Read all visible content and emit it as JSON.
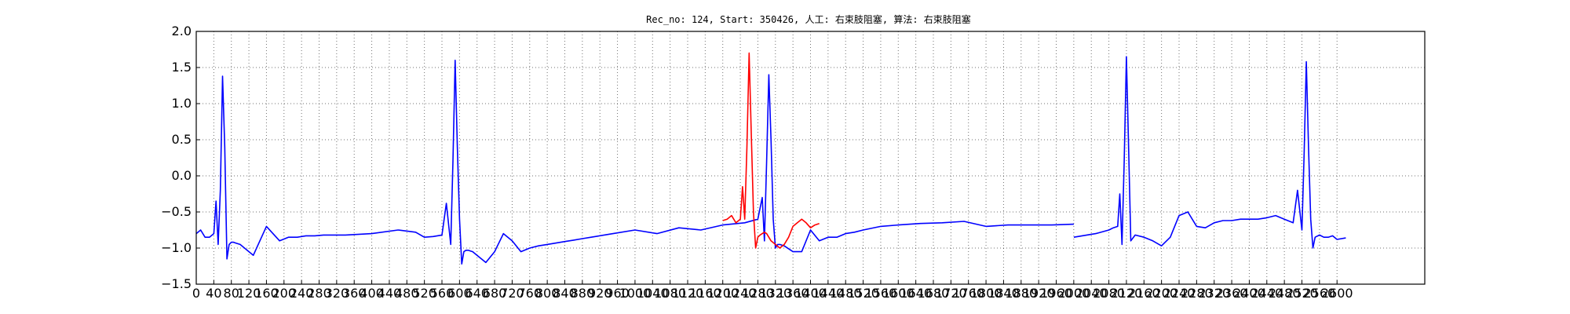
{
  "chart_data": {
    "type": "line",
    "title": "Rec_no: 124, Start: 350426, 人工: 右束肢阻塞, 算法: 右束肢阻塞",
    "xlim": [
      0,
      2800
    ],
    "ylim": [
      -1.5,
      2.0
    ],
    "x_ticks": [
      0,
      40,
      80,
      120,
      160,
      200,
      240,
      280,
      320,
      360,
      400,
      440,
      480,
      520,
      560,
      600,
      640,
      680,
      720,
      760,
      800,
      840,
      880,
      920,
      960,
      1000,
      1040,
      1080,
      1120,
      1160,
      1200,
      1240,
      1280,
      1320,
      1360,
      1400,
      1440,
      1480,
      1520,
      1560,
      1600,
      1640,
      1680,
      1720,
      1760,
      1800,
      1840,
      1880,
      1920,
      1960,
      2000,
      2040,
      2080,
      2120,
      2160,
      2200,
      2240,
      2280,
      2320,
      2360,
      2400,
      2440,
      2480,
      2520,
      2560,
      2600
    ],
    "y_ticks": [
      2.0,
      1.5,
      1.0,
      0.5,
      0.0,
      -0.5,
      -1.0,
      -1.5
    ],
    "y_tick_labels": [
      "2.0",
      "1.5",
      "1.0",
      "0.5",
      "0.0",
      "−0.5",
      "−1.0",
      "−1.5"
    ],
    "grid": true,
    "series": [
      {
        "color": "#0000ff",
        "x": [
          0,
          10,
          20,
          30,
          40,
          45,
          50,
          55,
          60,
          65,
          70,
          75,
          80,
          85,
          90,
          95,
          100,
          110,
          130,
          160,
          190,
          210,
          230,
          250,
          270,
          290,
          310,
          340,
          400,
          460,
          500,
          520,
          540,
          560,
          570,
          580,
          585,
          590,
          595,
          600,
          605,
          610,
          615,
          620,
          625,
          630,
          640,
          660,
          680,
          700,
          720,
          740,
          760,
          780,
          800,
          820,
          840,
          860,
          880,
          900,
          950,
          1000,
          1050,
          1100,
          1150,
          1200,
          1250,
          1280,
          1290,
          1295,
          1300,
          1305,
          1310,
          1315,
          1320,
          1325,
          1330,
          1340,
          1360,
          1380,
          1400,
          1420,
          1440,
          1460,
          1480,
          1500,
          1520,
          1560,
          1600,
          1650,
          1700,
          1750,
          1800,
          1850,
          1900,
          1950,
          2000
        ],
        "y": [
          -0.8,
          -0.75,
          -0.85,
          -0.85,
          -0.8,
          -0.35,
          -0.95,
          -0.2,
          1.38,
          0.4,
          -1.15,
          -0.95,
          -0.92,
          -0.92,
          -0.93,
          -0.94,
          -0.95,
          -1.0,
          -1.1,
          -0.7,
          -0.9,
          -0.85,
          -0.85,
          -0.83,
          -0.83,
          -0.82,
          -0.82,
          -0.82,
          -0.8,
          -0.75,
          -0.78,
          -0.85,
          -0.84,
          -0.82,
          -0.38,
          -0.95,
          0.2,
          1.6,
          0.4,
          -0.6,
          -1.22,
          -1.05,
          -1.03,
          -1.03,
          -1.04,
          -1.05,
          -1.1,
          -1.2,
          -1.05,
          -0.8,
          -0.9,
          -1.05,
          -1.0,
          -0.97,
          -0.95,
          -0.93,
          -0.91,
          -0.89,
          -0.87,
          -0.85,
          -0.8,
          -0.75,
          -0.8,
          -0.72,
          -0.75,
          -0.68,
          -0.65,
          -0.6,
          -0.3,
          -0.9,
          0.2,
          1.4,
          0.5,
          -0.6,
          -1.0,
          -0.95,
          -0.95,
          -0.97,
          -1.05,
          -1.05,
          -0.75,
          -0.9,
          -0.85,
          -0.85,
          -0.8,
          -0.78,
          -0.75,
          -0.7,
          -0.68,
          -0.66,
          -0.65,
          -0.63,
          -0.7,
          -0.68,
          -0.68,
          -0.68,
          -0.67
        ]
      }
    ]
  },
  "red_segment": {
    "color": "#ff0000",
    "x": [
      1200,
      1210,
      1220,
      1230,
      1240,
      1245,
      1250,
      1255,
      1260,
      1265,
      1270,
      1275,
      1280,
      1285,
      1290,
      1295,
      1300,
      1305,
      1310,
      1320,
      1330,
      1340,
      1350,
      1360,
      1370,
      1380,
      1390,
      1400,
      1410,
      1420
    ],
    "y": [
      -0.62,
      -0.6,
      -0.55,
      -0.65,
      -0.6,
      -0.15,
      -0.6,
      0.4,
      1.7,
      0.6,
      -0.5,
      -1.0,
      -0.85,
      -0.82,
      -0.8,
      -0.78,
      -0.8,
      -0.85,
      -0.9,
      -0.95,
      -1.0,
      -0.95,
      -0.85,
      -0.7,
      -0.65,
      -0.6,
      -0.65,
      -0.72,
      -0.68,
      -0.66
    ]
  },
  "blue_tail": {
    "color": "#0000ff",
    "x": [
      2000,
      2050,
      2080,
      2090,
      2100,
      2105,
      2110,
      2115,
      2120,
      2125,
      2130,
      2140,
      2160,
      2180,
      2200,
      2220,
      2240,
      2260,
      2280,
      2300,
      2320,
      2340,
      2360,
      2380,
      2400,
      2420,
      2440,
      2460,
      2480,
      2500,
      2510,
      2520,
      2525,
      2530,
      2535,
      2540,
      2545,
      2550,
      2560,
      2570,
      2580,
      2590,
      2600,
      2620
    ],
    "y": [
      -0.85,
      -0.8,
      -0.75,
      -0.72,
      -0.7,
      -0.25,
      -0.95,
      0.2,
      1.65,
      0.4,
      -0.9,
      -0.82,
      -0.85,
      -0.9,
      -0.97,
      -0.85,
      -0.55,
      -0.5,
      -0.7,
      -0.72,
      -0.65,
      -0.62,
      -0.62,
      -0.6,
      -0.6,
      -0.6,
      -0.58,
      -0.55,
      -0.6,
      -0.65,
      -0.2,
      -0.75,
      0.3,
      1.58,
      0.4,
      -0.6,
      -1.0,
      -0.85,
      -0.82,
      -0.85,
      -0.85,
      -0.83,
      -0.88,
      -0.86
    ]
  }
}
